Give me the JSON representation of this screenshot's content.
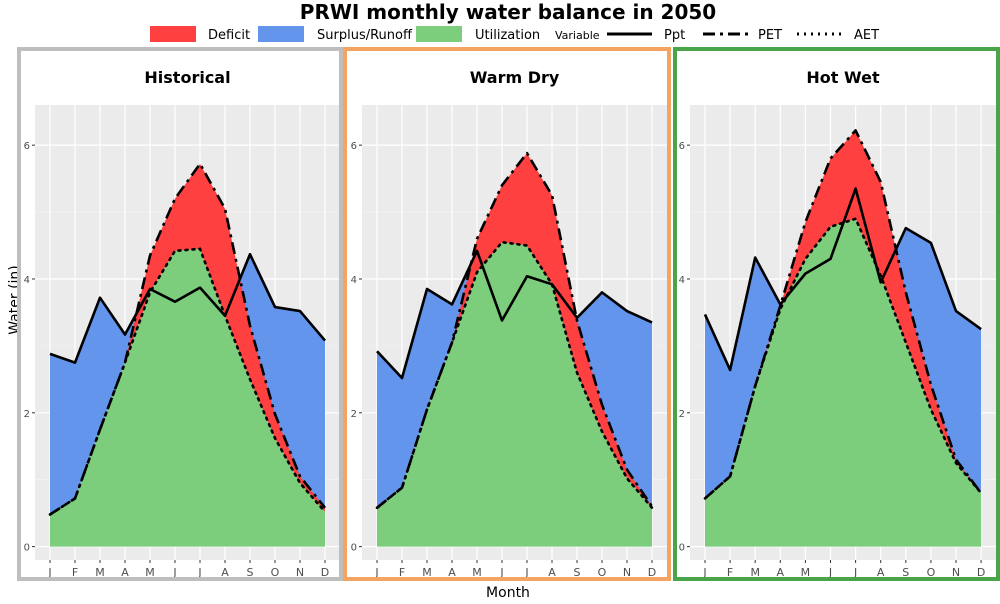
{
  "chart_data": {
    "type": "area",
    "title": "PRWI monthly water balance in 2050",
    "xlabel": "Month",
    "ylabel": "Water (in)",
    "ylim": [
      -0.2,
      6.6
    ],
    "yticks": [
      0,
      2,
      4,
      6
    ],
    "categories": [
      "J",
      "F",
      "M",
      "A",
      "M",
      "J",
      "J",
      "A",
      "S",
      "O",
      "N",
      "D"
    ],
    "legend": {
      "placement": "top",
      "fill_items": [
        {
          "label": "Deficit",
          "color": "#ff4040"
        },
        {
          "label": "Surplus/Runoff",
          "color": "#6495ed"
        },
        {
          "label": "Utilization",
          "color": "#7ccd7c"
        }
      ],
      "line_title": "Variable",
      "line_items": [
        {
          "label": "Ppt",
          "dash": "solid"
        },
        {
          "label": "PET",
          "dash": "longdash-dot"
        },
        {
          "label": "AET",
          "dash": "dotted"
        }
      ]
    },
    "panels": [
      {
        "title": "Historical",
        "border_color": "#bebebe",
        "series": [
          {
            "name": "Ppt",
            "values": [
              2.88,
              2.75,
              3.72,
              3.17,
              3.85,
              3.66,
              3.87,
              3.45,
              4.37,
              3.58,
              3.52,
              3.08
            ]
          },
          {
            "name": "PET",
            "values": [
              0.48,
              0.72,
              1.75,
              2.75,
              4.35,
              5.2,
              5.72,
              5.05,
              3.3,
              1.98,
              1.05,
              0.58
            ]
          },
          {
            "name": "AET",
            "values": [
              0.48,
              0.72,
              1.75,
              2.75,
              3.8,
              4.42,
              4.45,
              3.45,
              2.5,
              1.62,
              0.95,
              0.52
            ]
          }
        ]
      },
      {
        "title": "Warm Dry",
        "border_color": "#f4a460",
        "series": [
          {
            "name": "Ppt",
            "values": [
              2.92,
              2.52,
              3.85,
              3.62,
              4.42,
              3.38,
              4.04,
              3.92,
              3.42,
              3.8,
              3.52,
              3.35
            ]
          },
          {
            "name": "PET",
            "values": [
              0.58,
              0.88,
              2.05,
              3.05,
              4.6,
              5.4,
              5.88,
              5.25,
              3.38,
              2.12,
              1.15,
              0.6
            ]
          },
          {
            "name": "AET",
            "values": [
              0.58,
              0.88,
              2.05,
              3.05,
              4.1,
              4.55,
              4.5,
              3.92,
              2.6,
              1.72,
              1.02,
              0.58
            ]
          }
        ]
      },
      {
        "title": "Hot Wet",
        "border_color": "#4aa54a",
        "series": [
          {
            "name": "Ppt",
            "values": [
              3.47,
              2.64,
              4.32,
              3.62,
              4.08,
              4.3,
              5.35,
              3.95,
              4.76,
              4.54,
              3.52,
              3.25
            ]
          },
          {
            "name": "PET",
            "values": [
              0.72,
              1.05,
              2.4,
              3.6,
              4.85,
              5.8,
              6.22,
              5.45,
              3.8,
              2.42,
              1.3,
              0.8
            ]
          },
          {
            "name": "AET",
            "values": [
              0.72,
              1.05,
              2.4,
              3.55,
              4.3,
              4.78,
              4.9,
              4.05,
              3.05,
              2.05,
              1.25,
              0.8
            ]
          }
        ]
      }
    ],
    "grid": true
  }
}
